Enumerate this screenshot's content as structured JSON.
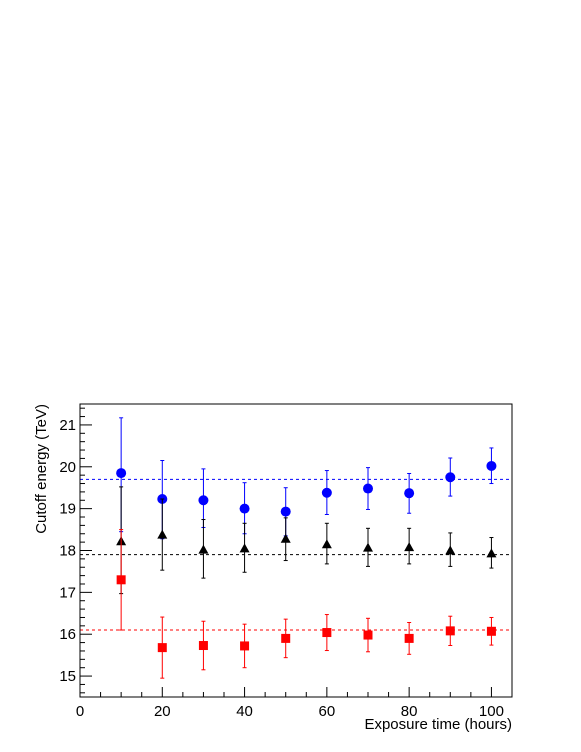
{
  "chart_data": {
    "type": "scatter",
    "xlabel": "Exposure time (hours)",
    "ylabel": "Cutoff energy (TeV)",
    "xlim": [
      0,
      105
    ],
    "ylim": [
      14.5,
      21.5
    ],
    "x_ticks": [
      0,
      20,
      40,
      60,
      80,
      100
    ],
    "y_ticks": [
      15,
      16,
      17,
      18,
      19,
      20,
      21
    ],
    "grid": false,
    "legend": "none",
    "x": [
      10,
      20,
      30,
      40,
      50,
      60,
      70,
      80,
      90,
      100
    ],
    "series": [
      {
        "marker": "circle",
        "color": "#0000ff",
        "values": [
          19.85,
          19.23,
          19.2,
          19.0,
          18.93,
          19.38,
          19.48,
          19.37,
          19.75,
          20.02
        ],
        "err_low": [
          1.4,
          0.95,
          0.65,
          0.6,
          0.58,
          0.52,
          0.5,
          0.48,
          0.45,
          0.42
        ],
        "err_high": [
          1.32,
          0.92,
          0.75,
          0.62,
          0.57,
          0.53,
          0.5,
          0.47,
          0.46,
          0.43
        ],
        "reference_line": 19.7
      },
      {
        "marker": "triangle",
        "color": "#000000",
        "values": [
          18.22,
          18.38,
          18.02,
          18.05,
          18.28,
          18.15,
          18.07,
          18.08,
          18.0,
          17.93
        ],
        "err_low": [
          1.25,
          0.85,
          0.68,
          0.57,
          0.52,
          0.47,
          0.45,
          0.4,
          0.38,
          0.35
        ],
        "err_high": [
          1.3,
          0.85,
          0.72,
          0.6,
          0.5,
          0.5,
          0.46,
          0.45,
          0.42,
          0.38
        ],
        "reference_line": 17.9
      },
      {
        "marker": "square",
        "color": "#ff0000",
        "values": [
          17.3,
          15.68,
          15.73,
          15.72,
          15.9,
          16.04,
          15.98,
          15.9,
          16.08,
          16.07
        ],
        "err_low": [
          1.2,
          0.73,
          0.58,
          0.52,
          0.46,
          0.43,
          0.4,
          0.38,
          0.35,
          0.33
        ],
        "err_high": [
          1.2,
          0.73,
          0.58,
          0.52,
          0.46,
          0.43,
          0.4,
          0.38,
          0.35,
          0.33
        ],
        "reference_line": 16.1
      }
    ]
  }
}
